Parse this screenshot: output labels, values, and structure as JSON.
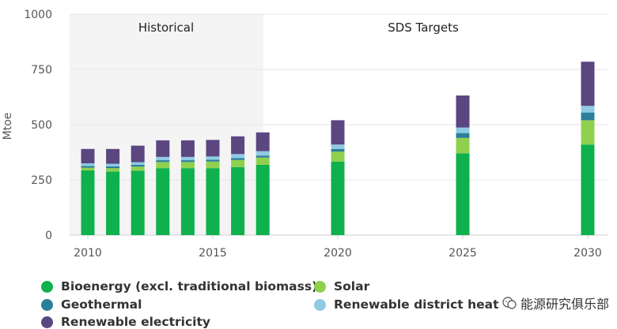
{
  "chart_data": {
    "type": "bar",
    "stacked": true,
    "title": "",
    "xlabel": "",
    "ylabel": "Mtoe",
    "ylim": [
      0,
      1000
    ],
    "yticks": [
      0,
      250,
      500,
      750,
      1000
    ],
    "xticks": [
      "2010",
      "2015",
      "2020",
      "2025",
      "2030"
    ],
    "grid": true,
    "regions": [
      {
        "label": "Historical",
        "from": 2010,
        "to": 2017,
        "shaded": true
      },
      {
        "label": "SDS Targets",
        "from": 2018,
        "to": 2030,
        "shaded": false
      }
    ],
    "x": [
      2010,
      2011,
      2012,
      2013,
      2014,
      2015,
      2016,
      2017,
      2020,
      2025,
      2030
    ],
    "series": [
      {
        "name": "Bioenergy (excl. traditional biomass)",
        "color": "#0fb04e",
        "values": [
          293,
          288,
          292,
          303,
          303,
          303,
          308,
          318,
          333,
          370,
          410
        ]
      },
      {
        "name": "Solar",
        "color": "#8fd14f",
        "values": [
          12,
          15,
          18,
          28,
          28,
          30,
          32,
          33,
          45,
          70,
          110
        ]
      },
      {
        "name": "Geothermal",
        "color": "#2b7f99",
        "values": [
          8,
          8,
          8,
          8,
          8,
          8,
          9,
          9,
          12,
          22,
          35
        ]
      },
      {
        "name": "Renewable district heat",
        "color": "#8fcbe3",
        "values": [
          12,
          12,
          12,
          15,
          15,
          15,
          18,
          20,
          20,
          25,
          30
        ]
      },
      {
        "name": "Renewable electricity",
        "color": "#5b4680",
        "values": [
          65,
          67,
          75,
          75,
          75,
          75,
          80,
          85,
          110,
          145,
          200
        ]
      }
    ],
    "legend_position": "bottom"
  },
  "legend": [
    {
      "label": "Bioenergy (excl. traditional biomass)",
      "color": "#0fb04e"
    },
    {
      "label": "Solar",
      "color": "#8fd14f"
    },
    {
      "label": "Geothermal",
      "color": "#2b7f99"
    },
    {
      "label": "Renewable district heat",
      "color": "#8fcbe3"
    },
    {
      "label": "Renewable electricity",
      "color": "#5b4680"
    }
  ],
  "watermark": {
    "text": "能源研究俱乐部"
  }
}
